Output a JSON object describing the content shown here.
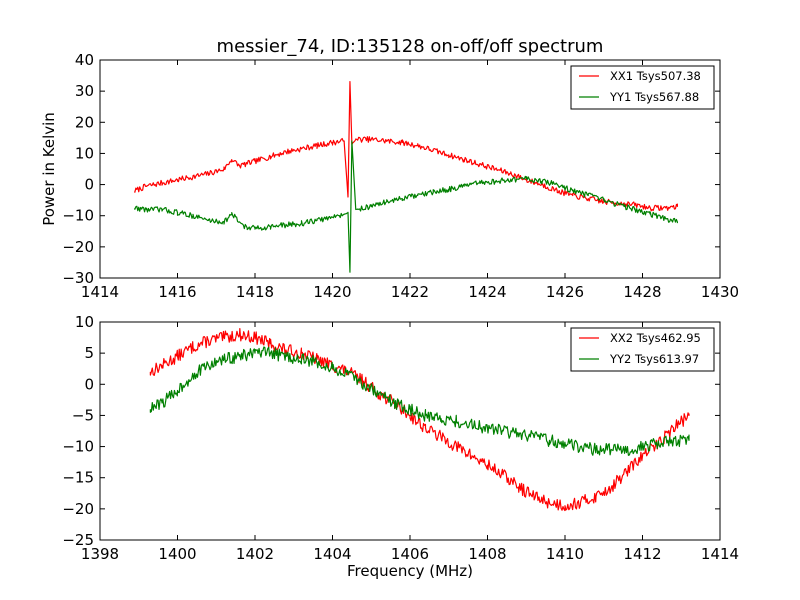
{
  "chart_data": [
    {
      "type": "line",
      "title": "messier_74, ID:135128 on-off/off spectrum",
      "xlabel": "",
      "ylabel": "Power in Kelvin",
      "xlim": [
        1414,
        1430
      ],
      "ylim": [
        -30,
        40
      ],
      "xticks": [
        "1414",
        "1416",
        "1418",
        "1420",
        "1422",
        "1424",
        "1426",
        "1428",
        "1430"
      ],
      "yticks": [
        "40",
        "30",
        "20",
        "10",
        "0",
        "−10",
        "−20",
        "−30"
      ],
      "legend_position": "upper right",
      "series": [
        {
          "name": "XX1 Tsys507.38",
          "color": "#ff0000",
          "x": [
            1414.9,
            1415.2,
            1415.6,
            1416.0,
            1416.4,
            1416.8,
            1417.2,
            1417.4,
            1417.6,
            1418.0,
            1418.4,
            1418.8,
            1419.2,
            1419.6,
            1420.0,
            1420.3,
            1420.4,
            1420.45,
            1420.5,
            1420.6,
            1421.0,
            1421.4,
            1421.8,
            1422.2,
            1422.6,
            1423.0,
            1423.4,
            1423.8,
            1424.2,
            1424.6,
            1425.0,
            1425.4,
            1425.8,
            1426.2,
            1426.6,
            1427.0,
            1427.4,
            1427.8,
            1428.2,
            1428.6,
            1428.9
          ],
          "values": [
            -2,
            -0.5,
            0.5,
            1.5,
            2.5,
            3.5,
            5,
            8,
            6,
            7.5,
            9,
            10.5,
            11.5,
            12.5,
            13.5,
            14,
            -4,
            33,
            13,
            14.5,
            14.5,
            14,
            13.5,
            12.5,
            11,
            9.5,
            8,
            6.5,
            5,
            3.5,
            1.5,
            0,
            -2,
            -3.5,
            -4.5,
            -5.5,
            -6,
            -6.5,
            -7.5,
            -7.5,
            -7
          ]
        },
        {
          "name": "YY1 Tsys567.88",
          "color": "#008000",
          "x": [
            1414.9,
            1415.2,
            1415.6,
            1416.0,
            1416.4,
            1416.8,
            1417.2,
            1417.4,
            1417.6,
            1417.8,
            1418.0,
            1418.4,
            1418.8,
            1419.2,
            1419.6,
            1420.0,
            1420.3,
            1420.4,
            1420.45,
            1420.5,
            1420.6,
            1421.0,
            1421.4,
            1421.8,
            1422.2,
            1422.6,
            1423.0,
            1423.4,
            1423.8,
            1424.2,
            1424.6,
            1425.0,
            1425.4,
            1425.8,
            1426.2,
            1426.6,
            1427.0,
            1427.4,
            1427.8,
            1428.2,
            1428.6,
            1428.9
          ],
          "values": [
            -7.5,
            -8,
            -8,
            -9,
            -10,
            -11.5,
            -12,
            -9.5,
            -12,
            -14,
            -14,
            -13.5,
            -13,
            -12.5,
            -11.5,
            -10.5,
            -9.5,
            -9,
            -28,
            14,
            -8,
            -7,
            -5.5,
            -4.5,
            -3.5,
            -2.5,
            -1.5,
            -0.5,
            0.5,
            1,
            1.5,
            2,
            1,
            0,
            -2,
            -3.5,
            -5,
            -6.5,
            -8,
            -9.5,
            -11,
            -12
          ]
        }
      ]
    },
    {
      "type": "line",
      "title": "",
      "xlabel": "Frequency (MHz)",
      "ylabel": "",
      "xlim": [
        1398,
        1414
      ],
      "ylim": [
        -25,
        10
      ],
      "xticks": [
        "1398",
        "1400",
        "1402",
        "1404",
        "1406",
        "1408",
        "1410",
        "1412",
        "1414"
      ],
      "yticks": [
        "10",
        "5",
        "0",
        "−5",
        "−10",
        "−15",
        "−20",
        "−25"
      ],
      "legend_position": "upper right",
      "series": [
        {
          "name": "XX2 Tsys462.95",
          "color": "#ff0000",
          "x": [
            1399.3,
            1399.6,
            1400.0,
            1400.4,
            1400.8,
            1401.2,
            1401.6,
            1402.0,
            1402.4,
            1402.8,
            1403.2,
            1403.6,
            1404.0,
            1404.4,
            1404.8,
            1405.2,
            1405.6,
            1406.0,
            1406.4,
            1406.8,
            1407.2,
            1407.6,
            1408.0,
            1408.4,
            1408.8,
            1409.2,
            1409.6,
            1410.0,
            1410.4,
            1410.8,
            1411.2,
            1411.6,
            1412.0,
            1412.4,
            1412.8,
            1413.2
          ],
          "values": [
            2,
            3,
            4.5,
            6,
            7,
            7.5,
            8,
            7.5,
            6.5,
            5.5,
            5,
            4,
            3,
            2,
            0.5,
            -1.5,
            -3,
            -5,
            -7,
            -8.5,
            -10,
            -11.5,
            -13,
            -14.5,
            -16.5,
            -18,
            -19,
            -19.5,
            -19,
            -18,
            -16.5,
            -14,
            -11.5,
            -9.5,
            -7,
            -5
          ]
        },
        {
          "name": "YY2 Tsys613.97",
          "color": "#008000",
          "x": [
            1399.3,
            1399.6,
            1400.0,
            1400.4,
            1400.8,
            1401.2,
            1401.6,
            1402.0,
            1402.4,
            1402.8,
            1403.2,
            1403.6,
            1404.0,
            1404.4,
            1404.8,
            1405.2,
            1405.6,
            1406.0,
            1406.4,
            1406.8,
            1407.2,
            1407.6,
            1408.0,
            1408.4,
            1408.8,
            1409.2,
            1409.6,
            1410.0,
            1410.4,
            1410.8,
            1411.2,
            1411.6,
            1412.0,
            1412.4,
            1412.8,
            1413.2
          ],
          "values": [
            -4,
            -3,
            -1,
            1.5,
            3,
            4,
            4.5,
            5,
            5,
            4.5,
            4,
            3.5,
            2.5,
            1.5,
            0,
            -1.5,
            -3,
            -4,
            -5,
            -5.5,
            -6,
            -6.5,
            -7,
            -7.5,
            -8,
            -8.5,
            -9,
            -9.5,
            -10,
            -10.5,
            -10.5,
            -10.5,
            -10,
            -9.5,
            -9,
            -9
          ]
        }
      ]
    }
  ]
}
